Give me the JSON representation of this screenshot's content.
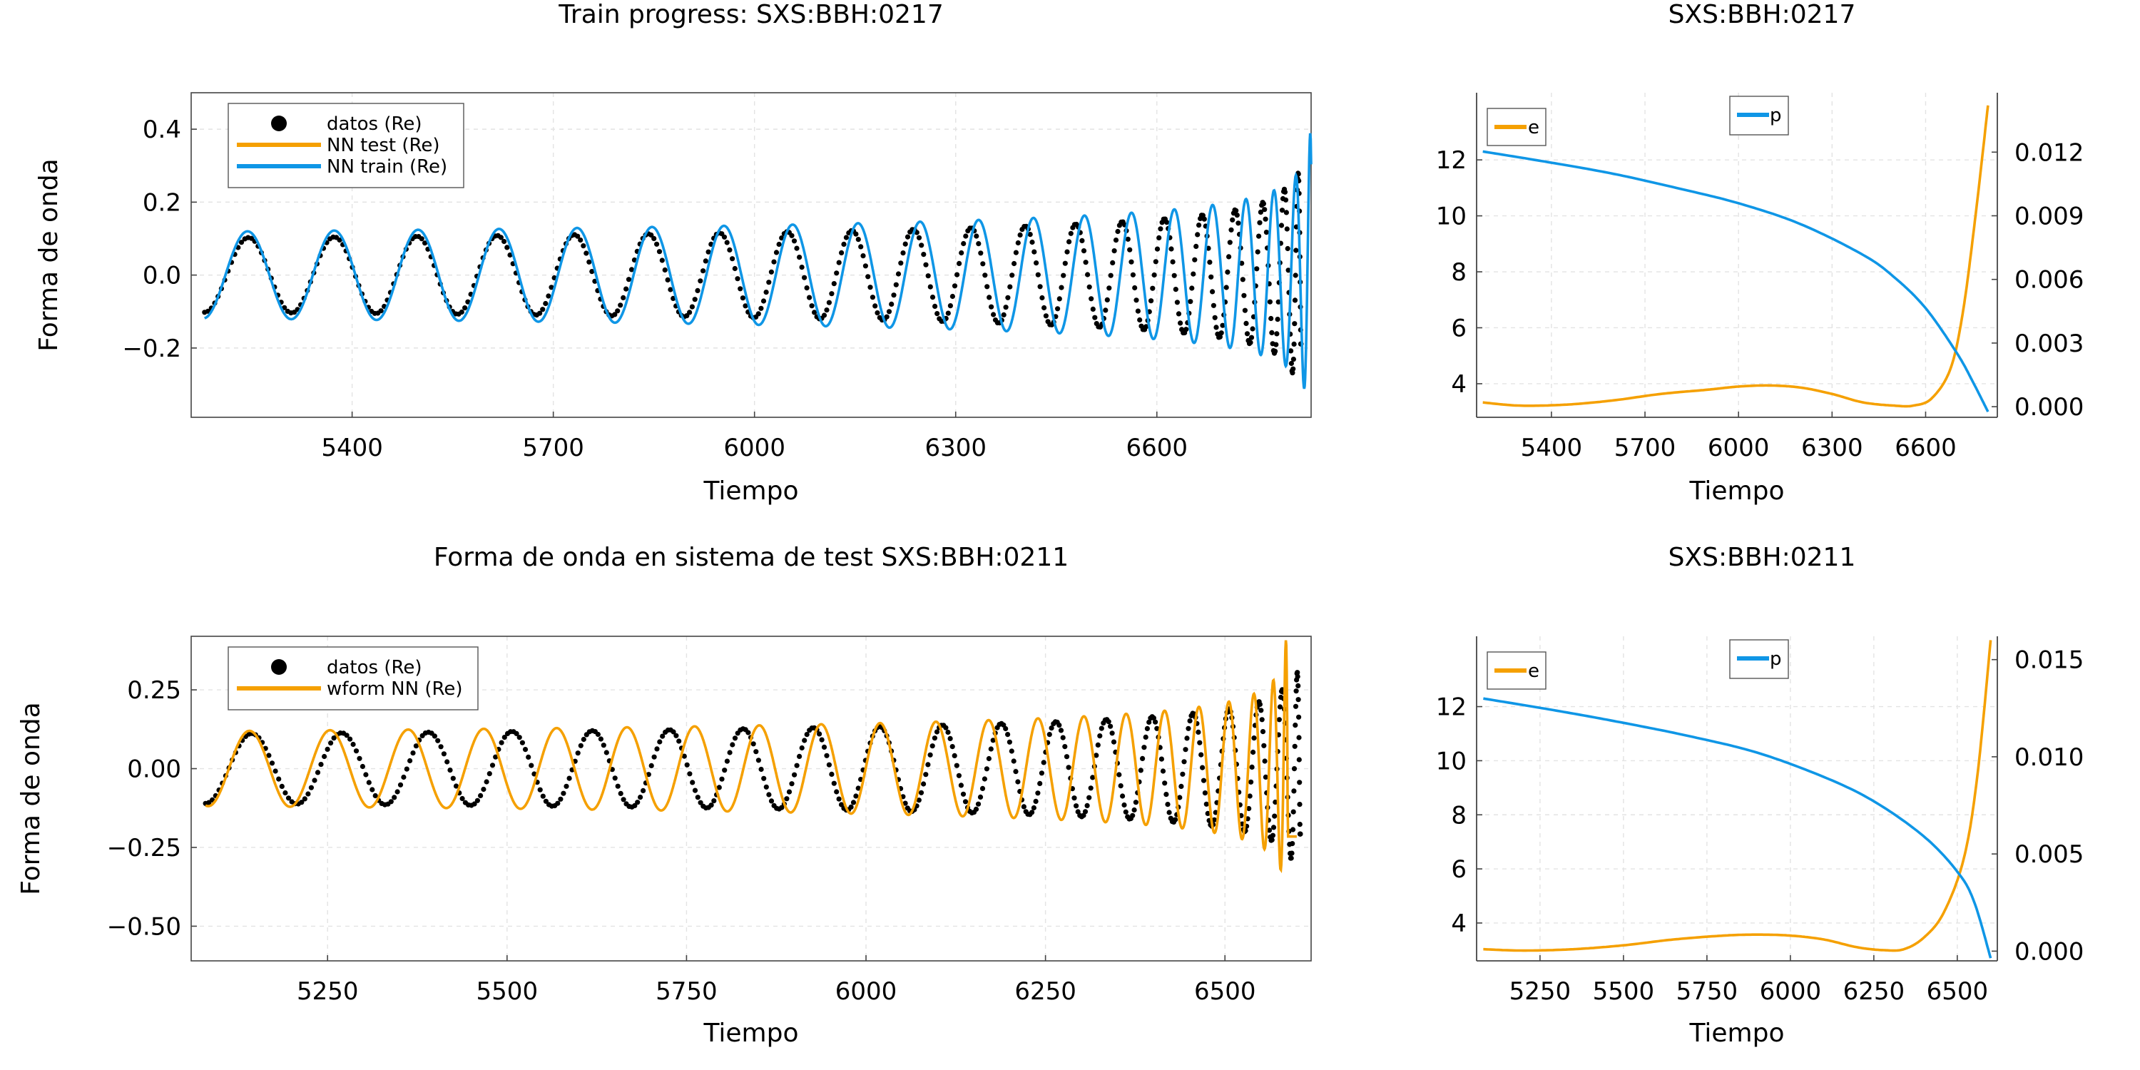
{
  "chart_data": [
    {
      "type": "line",
      "title": "Train progress: SXS:BBH:0217",
      "xlabel": "Tiempo",
      "ylabel": "Forma de onda",
      "xlim": [
        5160,
        6830
      ],
      "ylim": [
        -0.39,
        0.5
      ],
      "xticks": [
        5400,
        5700,
        6000,
        6300,
        6600
      ],
      "yticks": [
        -0.2,
        0.0,
        0.2,
        0.4
      ],
      "xtick_labels": [
        "5400",
        "5700",
        "6000",
        "6300",
        "6600"
      ],
      "ytick_labels": [
        "−0.2",
        "0.0",
        "0.2",
        "0.4"
      ],
      "grid": true,
      "legend_position": "top-left",
      "series": [
        {
          "name": "datos (Re)",
          "style": "dots",
          "color": "#000000",
          "t_start": 5180,
          "t_merge": 6815,
          "amp_start": 0.12,
          "amp_end": 0.33,
          "cycles": 20,
          "t_end": 6815
        },
        {
          "name": "NN test (Re)",
          "style": "line",
          "color": "#f5a000",
          "t_start": 5180,
          "t_merge": 6820,
          "amp_start": 0.12,
          "amp_end": 0.33,
          "cycles": 20,
          "t_end": 5180
        },
        {
          "name": "NN train (Re)",
          "style": "line",
          "color": "#0f96e6",
          "t_start": 5180,
          "t_merge": 6833,
          "amp_start": 0.14,
          "amp_end": 0.48,
          "cycles": 20,
          "phase": 0.1,
          "t_end": 6830
        }
      ]
    },
    {
      "type": "line",
      "title": "SXS:BBH:0217",
      "xlabel": "Tiempo",
      "xlim": [
        5160,
        6830
      ],
      "ylim": [
        2.8,
        14.4
      ],
      "y2lim": [
        -0.0005,
        0.0148
      ],
      "xticks": [
        5400,
        5700,
        6000,
        6300,
        6600
      ],
      "yticks": [
        4,
        6,
        8,
        10,
        12
      ],
      "y2ticks": [
        0.0,
        0.003,
        0.006,
        0.009,
        0.012
      ],
      "xtick_labels": [
        "5400",
        "5700",
        "6000",
        "6300",
        "6600"
      ],
      "ytick_labels": [
        "4",
        "6",
        "8",
        "10",
        "12"
      ],
      "y2tick_labels": [
        "0.000",
        "0.003",
        "0.006",
        "0.009",
        "0.012"
      ],
      "grid": true,
      "series": [
        {
          "name": "e",
          "axis": "right",
          "color": "#f5a000",
          "points": [
            [
              5180,
              0.0002
            ],
            [
              5300,
              5e-05
            ],
            [
              5450,
              0.0001
            ],
            [
              5600,
              0.0003
            ],
            [
              5750,
              0.0006
            ],
            [
              5900,
              0.0008
            ],
            [
              6000,
              0.00095
            ],
            [
              6100,
              0.001
            ],
            [
              6200,
              0.0009
            ],
            [
              6300,
              0.0006
            ],
            [
              6400,
              0.0002
            ],
            [
              6500,
              5e-05
            ],
            [
              6560,
              5e-05
            ],
            [
              6620,
              0.0004
            ],
            [
              6680,
              0.0018
            ],
            [
              6720,
              0.0045
            ],
            [
              6760,
              0.009
            ],
            [
              6800,
              0.0142
            ]
          ]
        },
        {
          "name": "p",
          "axis": "left",
          "color": "#0f96e6",
          "points": [
            [
              5180,
              12.3
            ],
            [
              5400,
              11.9
            ],
            [
              5600,
              11.5
            ],
            [
              5800,
              11.0
            ],
            [
              6000,
              10.45
            ],
            [
              6200,
              9.7
            ],
            [
              6400,
              8.6
            ],
            [
              6500,
              7.8
            ],
            [
              6600,
              6.7
            ],
            [
              6700,
              5.1
            ],
            [
              6750,
              4.1
            ],
            [
              6800,
              3.0
            ]
          ]
        }
      ]
    },
    {
      "type": "line",
      "title": "Forma de onda en sistema de test SXS:BBH:0211",
      "xlabel": "Tiempo",
      "ylabel": "Forma de onda",
      "xlim": [
        5060,
        6620
      ],
      "ylim": [
        -0.61,
        0.42
      ],
      "xticks": [
        5250,
        5500,
        5750,
        6000,
        6250,
        6500
      ],
      "yticks": [
        -0.5,
        -0.25,
        0.0,
        0.25
      ],
      "xtick_labels": [
        "5250",
        "5500",
        "5750",
        "6000",
        "6250",
        "6500"
      ],
      "ytick_labels": [
        "−0.50",
        "−0.25",
        "0.00",
        "0.25"
      ],
      "grid": true,
      "legend_position": "top-left",
      "series": [
        {
          "name": "datos (Re)",
          "style": "dots",
          "color": "#000000",
          "t_start": 5080,
          "t_merge": 6605,
          "amp_start": 0.13,
          "amp_end": 0.36,
          "cycles": 19,
          "t_end": 6605
        },
        {
          "name": "wform NN (Re)",
          "style": "line",
          "color": "#f5a000",
          "t_start": 5080,
          "t_merge": 6588,
          "amp_start": 0.14,
          "amp_end": 0.58,
          "cycles": 21,
          "phase": -0.2,
          "t_end": 6600
        }
      ]
    },
    {
      "type": "line",
      "title": "SXS:BBH:0211",
      "xlabel": "Tiempo",
      "xlim": [
        5060,
        6620
      ],
      "ylim": [
        2.6,
        14.6
      ],
      "y2lim": [
        -0.0005,
        0.0162
      ],
      "xticks": [
        5250,
        5500,
        5750,
        6000,
        6250,
        6500
      ],
      "yticks": [
        4,
        6,
        8,
        10,
        12
      ],
      "y2ticks": [
        0.0,
        0.005,
        0.01,
        0.015
      ],
      "xtick_labels": [
        "5250",
        "5500",
        "5750",
        "6000",
        "6250",
        "6500"
      ],
      "ytick_labels": [
        "4",
        "6",
        "8",
        "10",
        "12"
      ],
      "y2tick_labels": [
        "0.000",
        "0.005",
        "0.010",
        "0.015"
      ],
      "grid": true,
      "series": [
        {
          "name": "e",
          "axis": "right",
          "color": "#f5a000",
          "points": [
            [
              5080,
              0.0001
            ],
            [
              5200,
              3e-05
            ],
            [
              5350,
              0.0001
            ],
            [
              5500,
              0.0003
            ],
            [
              5650,
              0.0006
            ],
            [
              5800,
              0.0008
            ],
            [
              5900,
              0.00085
            ],
            [
              6000,
              0.0008
            ],
            [
              6100,
              0.0006
            ],
            [
              6200,
              0.0002
            ],
            [
              6280,
              5e-05
            ],
            [
              6340,
              0.0001
            ],
            [
              6400,
              0.0007
            ],
            [
              6460,
              0.002
            ],
            [
              6520,
              0.0048
            ],
            [
              6560,
              0.009
            ],
            [
              6600,
              0.016
            ]
          ]
        },
        {
          "name": "p",
          "axis": "left",
          "color": "#0f96e6",
          "points": [
            [
              5080,
              12.3
            ],
            [
              5300,
              11.85
            ],
            [
              5500,
              11.4
            ],
            [
              5700,
              10.9
            ],
            [
              5900,
              10.3
            ],
            [
              6100,
              9.4
            ],
            [
              6250,
              8.5
            ],
            [
              6400,
              7.2
            ],
            [
              6500,
              5.9
            ],
            [
              6550,
              4.8
            ],
            [
              6600,
              2.7
            ]
          ]
        }
      ]
    }
  ]
}
